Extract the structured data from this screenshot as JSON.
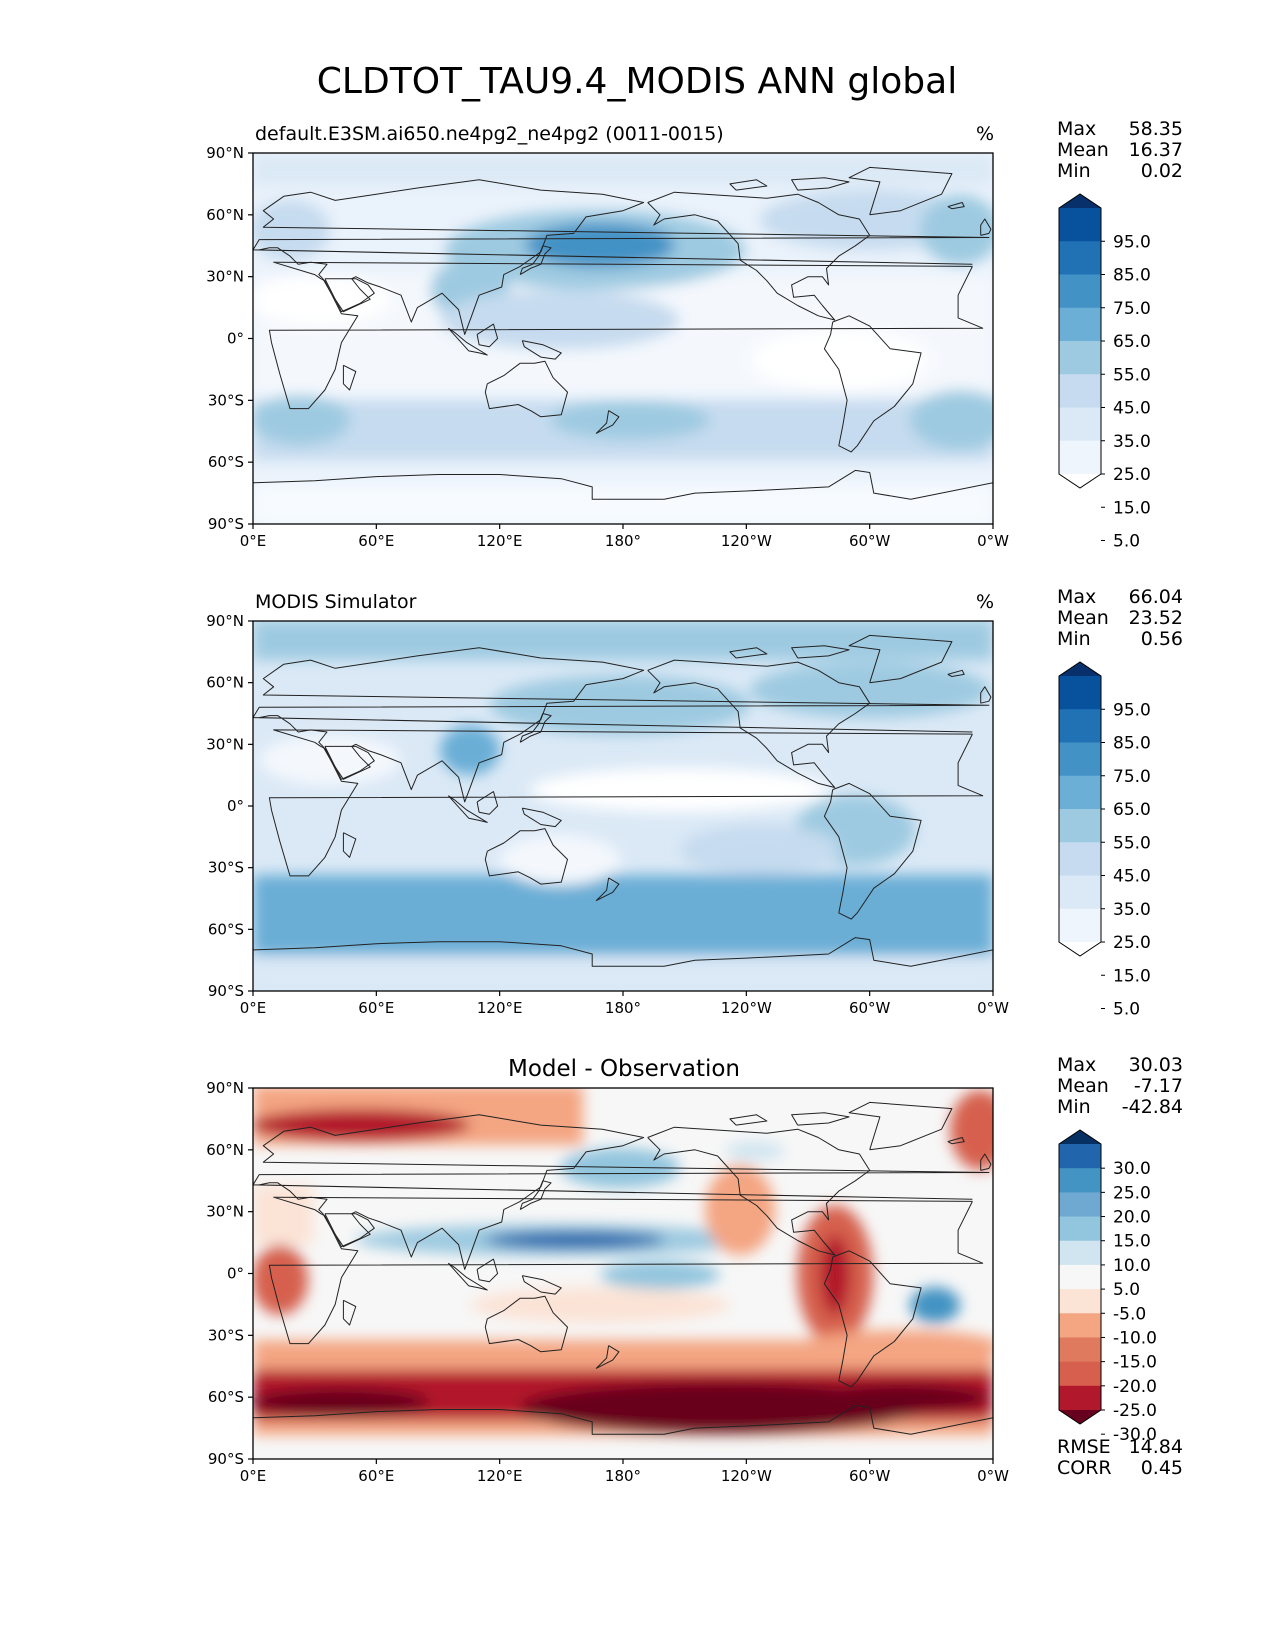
{
  "figure": {
    "title": "CLDTOT_TAU9.4_MODIS ANN global"
  },
  "axes_ticks": {
    "lat": [
      "90°N",
      "60°N",
      "30°N",
      "0°",
      "30°S",
      "60°S",
      "90°S"
    ],
    "lon": [
      "0°E",
      "60°E",
      "120°E",
      "180°",
      "120°W",
      "60°W",
      "0°W"
    ]
  },
  "panels": [
    {
      "title_left": "default.E3SM.ai650.ne4pg2_ne4pg2 (0011-0015)",
      "title_center": "",
      "units": "%",
      "stats": {
        "max_label": "Max",
        "max": "58.35",
        "mean_label": "Mean",
        "mean": "16.37",
        "min_label": "Min",
        "min": "0.02"
      },
      "colorbar": {
        "labels": [
          "95.0",
          "85.0",
          "75.0",
          "65.0",
          "55.0",
          "45.0",
          "35.0",
          "25.0",
          "15.0",
          "5.0"
        ],
        "colors": [
          "#08306b",
          "#08519c",
          "#2171b5",
          "#4292c6",
          "#6baed6",
          "#9ecae1",
          "#c6dbef",
          "#dbe9f6",
          "#eff5fc",
          "#ffffff"
        ]
      }
    },
    {
      "title_left": "MODIS Simulator",
      "title_center": "",
      "units": "%",
      "stats": {
        "max_label": "Max",
        "max": "66.04",
        "mean_label": "Mean",
        "mean": "23.52",
        "min_label": "Min",
        "min": "0.56"
      },
      "colorbar": {
        "labels": [
          "95.0",
          "85.0",
          "75.0",
          "65.0",
          "55.0",
          "45.0",
          "35.0",
          "25.0",
          "15.0",
          "5.0"
        ],
        "colors": [
          "#08306b",
          "#08519c",
          "#2171b5",
          "#4292c6",
          "#6baed6",
          "#9ecae1",
          "#c6dbef",
          "#dbe9f6",
          "#eff5fc",
          "#ffffff"
        ]
      }
    },
    {
      "title_left": "",
      "title_center": "Model - Observation",
      "units": "",
      "stats": {
        "max_label": "Max",
        "max": "30.03",
        "mean_label": "Mean",
        "mean": "-7.17",
        "min_label": "Min",
        "min": "-42.84"
      },
      "colorbar": {
        "labels": [
          "30.0",
          "25.0",
          "20.0",
          "15.0",
          "10.0",
          "5.0",
          "-5.0",
          "-10.0",
          "-15.0",
          "-20.0",
          "-25.0",
          "-30.0"
        ],
        "colors": [
          "#053061",
          "#2166ac",
          "#4393c3",
          "#6fa8d1",
          "#92c5de",
          "#d1e5f0",
          "#f7f7f7",
          "#fbe3d6",
          "#f4a582",
          "#e07a5f",
          "#d6604d",
          "#b2182b",
          "#67001f"
        ]
      },
      "metrics": {
        "rmse_label": "RMSE",
        "rmse": "14.84",
        "corr_label": "CORR",
        "corr": "0.45"
      }
    }
  ],
  "chart_data": [
    {
      "type": "heatmap",
      "title": "default.E3SM.ai650.ne4pg2_ne4pg2 (0011-0015)",
      "units": "%",
      "projection": "PlateCarree, central longitude 180",
      "x_ticks": [
        "0°E",
        "60°E",
        "120°E",
        "180°",
        "120°W",
        "60°W",
        "0°W"
      ],
      "y_ticks": [
        "90°N",
        "60°N",
        "30°N",
        "0°",
        "30°S",
        "60°S",
        "90°S"
      ],
      "contour_levels": [
        5,
        15,
        25,
        35,
        45,
        55,
        65,
        75,
        85,
        95
      ],
      "max": 58.35,
      "mean": 16.37,
      "min": 0.02
    },
    {
      "type": "heatmap",
      "title": "MODIS Simulator",
      "units": "%",
      "projection": "PlateCarree, central longitude 180",
      "x_ticks": [
        "0°E",
        "60°E",
        "120°E",
        "180°",
        "120°W",
        "60°W",
        "0°W"
      ],
      "y_ticks": [
        "90°N",
        "60°N",
        "30°N",
        "0°",
        "30°S",
        "60°S",
        "90°S"
      ],
      "contour_levels": [
        5,
        15,
        25,
        35,
        45,
        55,
        65,
        75,
        85,
        95
      ],
      "max": 66.04,
      "mean": 23.52,
      "min": 0.56
    },
    {
      "type": "heatmap",
      "title": "Model - Observation",
      "projection": "PlateCarree, central longitude 180",
      "x_ticks": [
        "0°E",
        "60°E",
        "120°E",
        "180°",
        "120°W",
        "60°W",
        "0°W"
      ],
      "y_ticks": [
        "90°N",
        "60°N",
        "30°N",
        "0°",
        "30°S",
        "60°S",
        "90°S"
      ],
      "contour_levels": [
        -30,
        -25,
        -20,
        -15,
        -10,
        -5,
        5,
        10,
        15,
        20,
        25,
        30
      ],
      "max": 30.03,
      "mean": -7.17,
      "min": -42.84,
      "rmse": 14.84,
      "corr": 0.45
    }
  ]
}
